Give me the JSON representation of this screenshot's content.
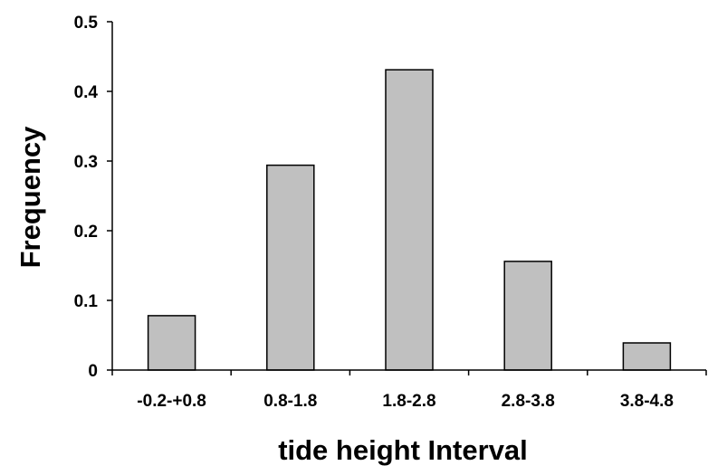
{
  "chart_data": {
    "type": "bar",
    "title": "",
    "xlabel": "tide height Interval",
    "ylabel": "Frequency",
    "categories": [
      "-0.2-+0.8",
      "0.8-1.8",
      "1.8-2.8",
      "2.8-3.8",
      "3.8-4.8"
    ],
    "values": [
      0.078,
      0.294,
      0.431,
      0.156,
      0.039
    ],
    "ylim": [
      0,
      0.5
    ],
    "yticks": [
      "0",
      "0.1",
      "0.2",
      "0.3",
      "0.4",
      "0.5"
    ],
    "ytick_values": [
      0,
      0.1,
      0.2,
      0.3,
      0.4,
      0.5
    ],
    "bar_color": "#c0c0c0",
    "grid": false,
    "legend": "none"
  }
}
